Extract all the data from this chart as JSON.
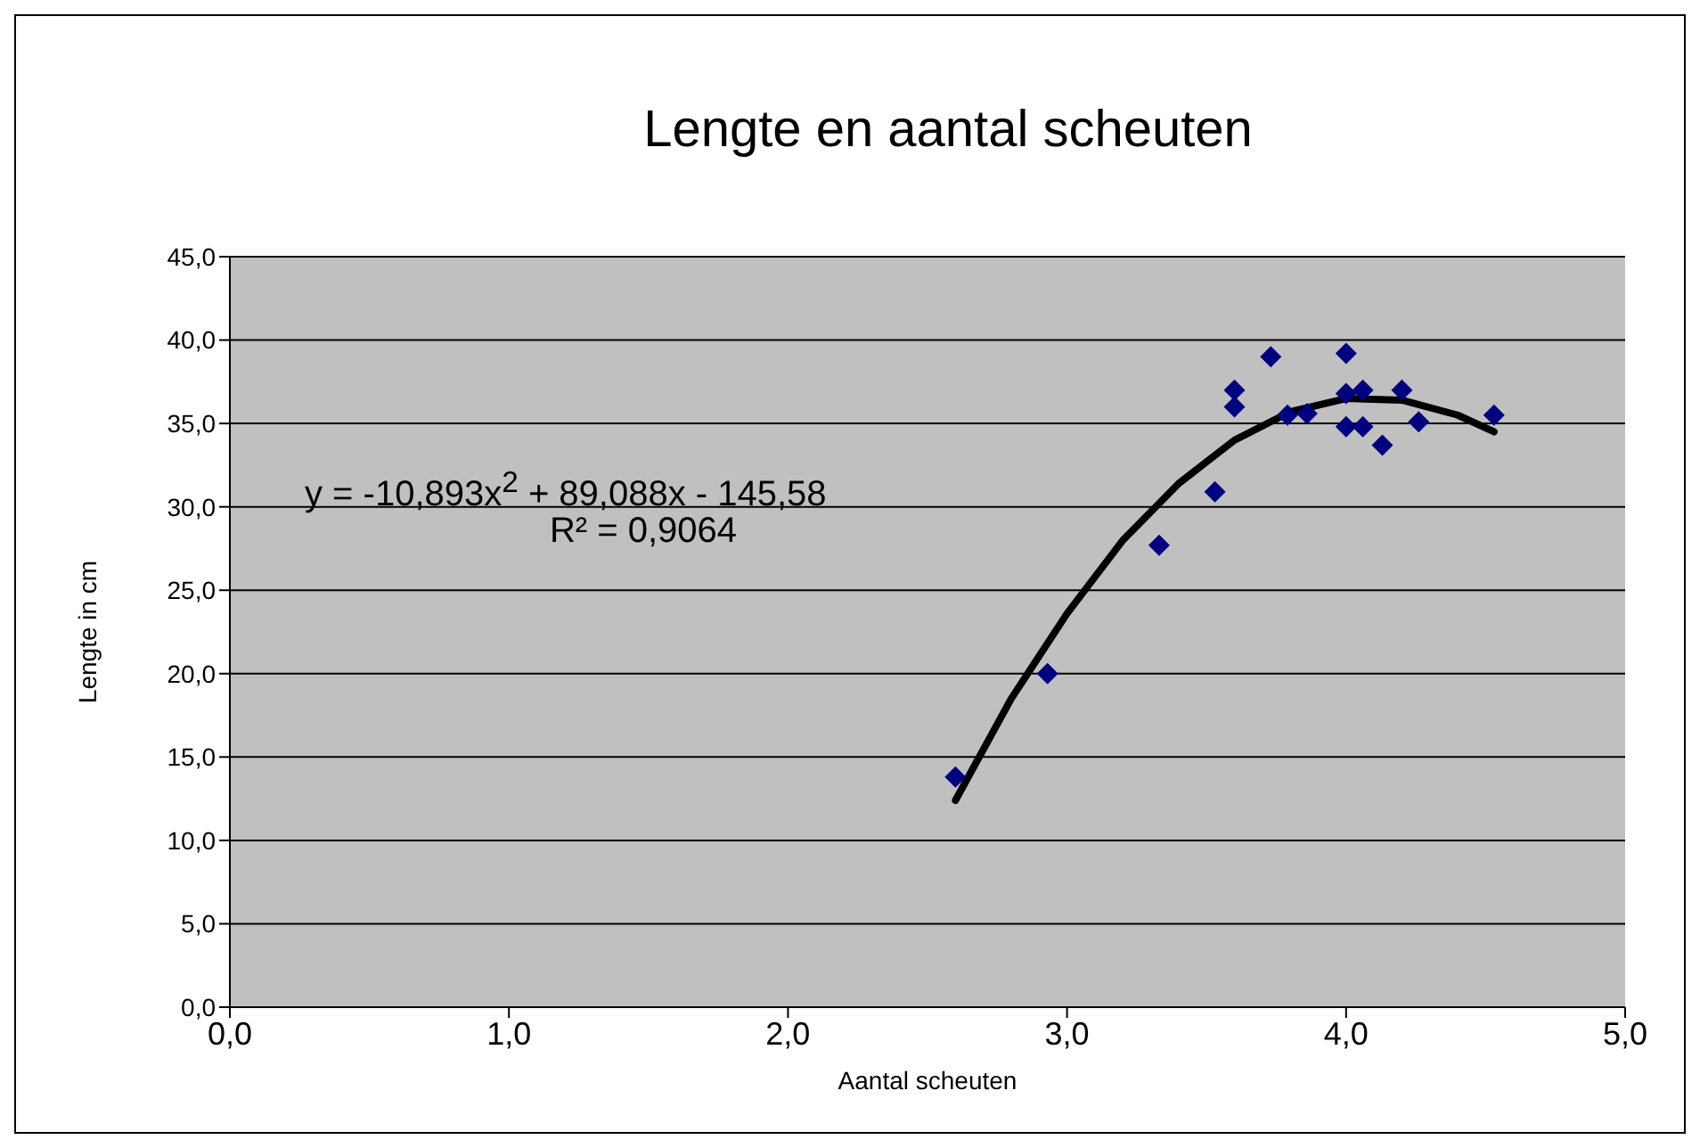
{
  "chart_data": {
    "type": "scatter",
    "title": "Lengte en aantal scheuten",
    "xlabel": "Aantal scheuten",
    "ylabel": "Lengte in cm",
    "annotations": [
      "y = -10,893x$^{2}$ + 89,088x - 145,58",
      "R² = 0,9064"
    ],
    "xlim": [
      0,
      5
    ],
    "ylim": [
      0,
      45
    ],
    "xticks": [
      {
        "value": 0,
        "label": "0,0"
      },
      {
        "value": 1,
        "label": "1,0"
      },
      {
        "value": 2,
        "label": "2,0"
      },
      {
        "value": 3,
        "label": "3,0"
      },
      {
        "value": 4,
        "label": "4,0"
      },
      {
        "value": 5,
        "label": "5,0"
      }
    ],
    "yticks": [
      {
        "value": 0,
        "label": "0,0"
      },
      {
        "value": 5,
        "label": "5,0"
      },
      {
        "value": 10,
        "label": "10,0"
      },
      {
        "value": 15,
        "label": "15,0"
      },
      {
        "value": 20,
        "label": "20,0"
      },
      {
        "value": 25,
        "label": "25,0"
      },
      {
        "value": 30,
        "label": "30,0"
      },
      {
        "value": 35,
        "label": "35,0"
      },
      {
        "value": 40,
        "label": "40,0"
      },
      {
        "value": 45,
        "label": "45,0"
      }
    ],
    "grid": "y",
    "legend": false,
    "series": [
      {
        "marker": "diamond",
        "color": "#000080",
        "x": [
          2.6,
          2.93,
          3.33,
          3.53,
          3.6,
          3.6,
          3.73,
          3.79,
          3.86,
          4.0,
          4.0,
          4.0,
          4.06,
          4.06,
          4.13,
          4.2,
          4.26,
          4.53
        ],
        "values": [
          13.8,
          20.0,
          27.7,
          30.9,
          37.0,
          36.0,
          39.0,
          35.5,
          35.6,
          39.2,
          36.8,
          34.8,
          37.0,
          34.8,
          33.7,
          37.0,
          35.1,
          35.5
        ]
      },
      {
        "type": "line",
        "marker": "none",
        "color": "#000000",
        "x": [
          2.6,
          2.8,
          3.0,
          3.2,
          3.4,
          3.6,
          3.8,
          4.0,
          4.2,
          4.4,
          4.53
        ],
        "values": [
          12.4,
          18.5,
          23.6,
          28.0,
          31.4,
          34.0,
          35.7,
          36.5,
          36.4,
          35.5,
          34.5
        ]
      }
    ]
  }
}
